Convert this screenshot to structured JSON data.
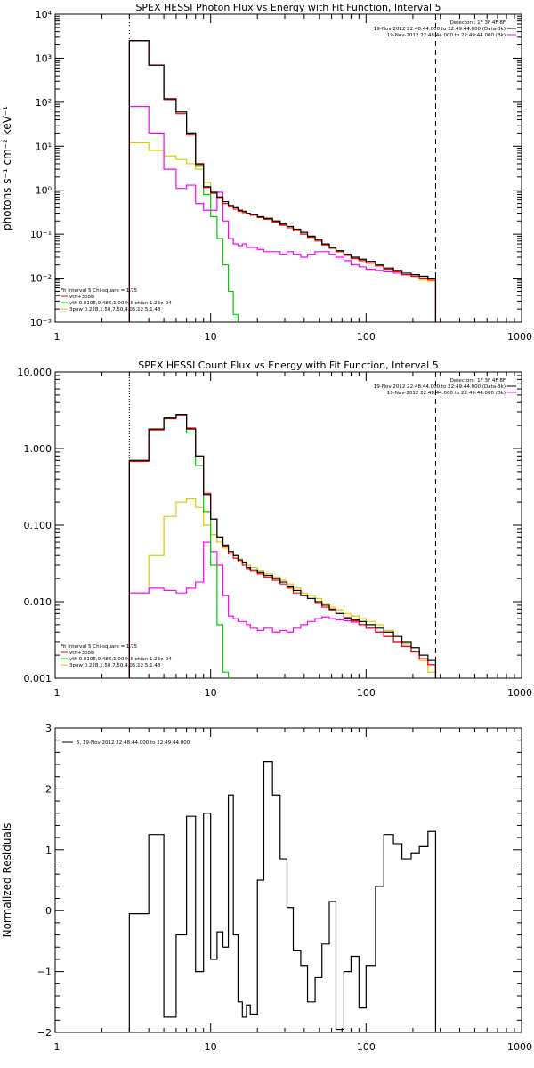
{
  "chart_data": [
    {
      "type": "line",
      "title": "SPEX HESSI Photon Flux vs Energy with Fit Function, Interval 5",
      "ylabel": "photons s⁻¹ cm⁻² keV⁻¹",
      "xlabel": "",
      "xscale": "log",
      "yscale": "log",
      "xlim": [
        1,
        1000
      ],
      "ylim": [
        0.001,
        10000
      ],
      "xticks": [
        "1",
        "10",
        "100",
        "1000"
      ],
      "yticks": [
        "10⁻³",
        "10⁻²",
        "10⁻¹",
        "10⁰",
        "10¹",
        "10²",
        "10³",
        "10⁴"
      ],
      "vlines": [
        3,
        280
      ],
      "legend_topright": [
        "Detectors: 1F 3F 4F 8F",
        "19-Nov-2012 22:48:44.000 to 22:49:44.000 (Data-Bk)",
        "19-Nov-2012 22:48:44.000 to 22:49:44.000 (Bk)"
      ],
      "legend_bottomleft": [
        "Fit Interval 5   Chi-square = 1.75",
        "vth+3pow",
        "vth 0.0105,0.486,1.00  full chian 1.26e-04",
        "3pow 0.228,1.50,7.50,4.05,12.5,1.43"
      ],
      "edges": [
        3,
        4,
        5,
        6,
        7,
        8,
        9,
        10,
        11,
        12,
        13,
        14,
        15,
        16,
        17,
        18,
        20,
        22,
        25,
        28,
        31,
        34,
        38,
        42,
        47,
        52,
        58,
        64,
        72,
        80,
        90,
        100,
        115,
        130,
        150,
        170,
        195,
        220,
        250,
        280
      ],
      "series": [
        {
          "name": "Data-Bk",
          "color": "#000000",
          "values": [
            2500,
            700,
            120,
            60,
            20,
            4,
            1.2,
            0.9,
            0.7,
            0.55,
            0.45,
            0.4,
            0.35,
            0.33,
            0.3,
            0.28,
            0.25,
            0.23,
            0.2,
            0.17,
            0.15,
            0.13,
            0.11,
            0.09,
            0.075,
            0.06,
            0.05,
            0.042,
            0.035,
            0.03,
            0.027,
            0.024,
            0.02,
            0.017,
            0.015,
            0.013,
            0.012,
            0.011,
            0.01
          ]
        },
        {
          "name": "vth+3pow",
          "color": "#ff0000",
          "values": [
            2500,
            690,
            115,
            55,
            18,
            3.8,
            1.15,
            0.85,
            0.65,
            0.5,
            0.42,
            0.37,
            0.33,
            0.31,
            0.29,
            0.27,
            0.24,
            0.22,
            0.19,
            0.16,
            0.14,
            0.12,
            0.1,
            0.085,
            0.07,
            0.057,
            0.048,
            0.04,
            0.033,
            0.028,
            0.025,
            0.022,
            0.019,
            0.016,
            0.014,
            0.012,
            0.011,
            0.01,
            0.009
          ]
        },
        {
          "name": "vth",
          "color": "#00cc00",
          "values": [
            2500,
            700,
            120,
            60,
            20,
            3.5,
            0.8,
            0.25,
            0.08,
            0.02,
            0.005,
            0.0015
          ]
        },
        {
          "name": "3pow",
          "color": "#ddcc00",
          "values": [
            12,
            8,
            6,
            5,
            4,
            3,
            1.5,
            0.9,
            0.7,
            0.55,
            0.45,
            0.4,
            0.35,
            0.33,
            0.3,
            0.27,
            0.24,
            0.22,
            0.19,
            0.16,
            0.14,
            0.12,
            0.1,
            0.085,
            0.07,
            0.057,
            0.048,
            0.04,
            0.033,
            0.028,
            0.025,
            0.022,
            0.019,
            0.016,
            0.014,
            0.012,
            0.011,
            0.009,
            0.0085
          ]
        },
        {
          "name": "Bk",
          "color": "#ff00ff",
          "values": [
            80,
            20,
            3,
            1.1,
            1.3,
            0.5,
            0.35,
            0.35,
            0.9,
            0.2,
            0.08,
            0.06,
            0.055,
            0.06,
            0.05,
            0.05,
            0.045,
            0.04,
            0.04,
            0.035,
            0.04,
            0.035,
            0.03,
            0.035,
            0.04,
            0.04,
            0.035,
            0.03,
            0.025,
            0.02,
            0.018,
            0.016,
            0.015,
            0.014,
            0.013,
            0.012,
            0.012,
            0.011,
            0.01
          ]
        }
      ]
    },
    {
      "type": "line",
      "title": "SPEX HESSI Count Flux vs Energy with Fit Function, Interval 5",
      "ylabel": "",
      "xlabel": "",
      "xscale": "log",
      "yscale": "log",
      "xlim": [
        1,
        1000
      ],
      "ylim": [
        0.001,
        10
      ],
      "xticks": [
        "1",
        "10",
        "100",
        "1000"
      ],
      "yticks": [
        "0.001",
        "0.010",
        "0.100",
        "1.000",
        "10.000"
      ],
      "vlines": [
        3,
        280
      ],
      "legend_topright": [
        "Detectors: 1F 3F 4F 8F",
        "19-Nov-2012 22:48:44.000 to 22:49:44.000 (Data-Bk)",
        "19-Nov-2012 22:48:44.000 to 22:49:44.000 (Bk)"
      ],
      "legend_bottomleft": [
        "Fit Interval 5   Chi-square = 1.75",
        "vth+3pow",
        "vth 0.0105,0.486,1.00  full chian 1.26e-04",
        "3pow 0.228,1.50,7.50,4.05,12.5,1.43"
      ],
      "edges": [
        3,
        4,
        5,
        6,
        7,
        8,
        9,
        10,
        11,
        12,
        13,
        14,
        15,
        16,
        17,
        18,
        20,
        22,
        25,
        28,
        31,
        34,
        38,
        42,
        47,
        52,
        58,
        64,
        72,
        80,
        90,
        100,
        115,
        130,
        150,
        170,
        195,
        220,
        250,
        280
      ],
      "series": [
        {
          "name": "Data-Bk",
          "color": "#000000",
          "values": [
            0.7,
            1.8,
            2.5,
            2.8,
            1.8,
            0.8,
            0.25,
            0.12,
            0.07,
            0.055,
            0.045,
            0.04,
            0.035,
            0.032,
            0.028,
            0.026,
            0.024,
            0.022,
            0.02,
            0.018,
            0.016,
            0.014,
            0.012,
            0.011,
            0.01,
            0.009,
            0.008,
            0.007,
            0.006,
            0.0058,
            0.0055,
            0.005,
            0.0045,
            0.004,
            0.0035,
            0.003,
            0.0025,
            0.002,
            0.0017
          ]
        },
        {
          "name": "vth+3pow",
          "color": "#ff0000",
          "values": [
            0.68,
            1.75,
            2.45,
            2.75,
            1.85,
            0.8,
            0.26,
            0.12,
            0.07,
            0.052,
            0.042,
            0.037,
            0.033,
            0.03,
            0.027,
            0.025,
            0.023,
            0.021,
            0.019,
            0.017,
            0.015,
            0.013,
            0.012,
            0.011,
            0.0095,
            0.0085,
            0.0078,
            0.007,
            0.0062,
            0.0056,
            0.005,
            0.0045,
            0.004,
            0.0035,
            0.003,
            0.0026,
            0.0022,
            0.0018,
            0.0015
          ]
        },
        {
          "name": "vth",
          "color": "#00cc00",
          "values": [
            0.7,
            1.8,
            2.5,
            2.8,
            1.6,
            0.6,
            0.15,
            0.03,
            0.005,
            0.0012
          ]
        },
        {
          "name": "3pow",
          "color": "#ddcc00",
          "values": [
            0.013,
            0.04,
            0.13,
            0.2,
            0.22,
            0.17,
            0.1,
            0.075,
            0.06,
            0.05,
            0.045,
            0.04,
            0.036,
            0.033,
            0.03,
            0.028,
            0.025,
            0.023,
            0.021,
            0.019,
            0.017,
            0.015,
            0.013,
            0.012,
            0.011,
            0.0095,
            0.0085,
            0.0078,
            0.007,
            0.0065,
            0.006,
            0.0055,
            0.005,
            0.0042,
            0.0035,
            0.0028,
            0.0022,
            0.0017,
            0.0012
          ]
        },
        {
          "name": "Bk",
          "color": "#ff00ff",
          "values": [
            0.013,
            0.015,
            0.014,
            0.013,
            0.015,
            0.018,
            0.06,
            0.045,
            0.03,
            0.012,
            0.0065,
            0.006,
            0.0055,
            0.0055,
            0.005,
            0.0045,
            0.0042,
            0.0045,
            0.004,
            0.0042,
            0.004,
            0.0045,
            0.005,
            0.0055,
            0.006,
            0.0063,
            0.006,
            0.0058,
            0.0056,
            0.0054,
            0.005,
            0.0045,
            0.004,
            0.0035,
            0.003,
            0.0026,
            0.0022,
            0.0018,
            0.0015
          ]
        }
      ]
    },
    {
      "type": "line",
      "title": "",
      "ylabel": "Normalized Residuals",
      "xlabel": "",
      "xscale": "log",
      "yscale": "linear",
      "xlim": [
        1,
        1000
      ],
      "ylim": [
        -2,
        3
      ],
      "xticks": [
        "1",
        "10",
        "100",
        "1000"
      ],
      "yticks": [
        "−2",
        "−1",
        "0",
        "1",
        "2",
        "3"
      ],
      "legend_topleft": [
        "5, 19-Nov-2012 22:48:44.000 to 22:49:44.000"
      ],
      "edges": [
        3,
        4,
        5,
        6,
        7,
        8,
        9,
        10,
        11,
        12,
        13,
        14,
        15,
        16,
        17,
        18,
        20,
        22,
        25,
        28,
        31,
        34,
        38,
        42,
        47,
        52,
        58,
        64,
        72,
        80,
        90,
        100,
        115,
        130,
        150,
        170,
        195,
        220,
        250,
        280
      ],
      "series": [
        {
          "name": "",
          "color": "#000000",
          "values": [
            -0.05,
            1.25,
            -1.75,
            -0.4,
            1.55,
            -1.0,
            1.6,
            -0.8,
            -0.35,
            -0.6,
            1.9,
            -0.4,
            -1.5,
            -1.75,
            -1.55,
            -1.7,
            0.5,
            2.45,
            1.9,
            0.85,
            0.05,
            -0.65,
            -0.9,
            -1.5,
            -1.1,
            -0.55,
            0.15,
            -1.95,
            -1.0,
            -0.75,
            -1.6,
            -0.9,
            0.4,
            1.25,
            1.1,
            0.85,
            0.95,
            1.05,
            1.3
          ]
        }
      ]
    }
  ]
}
